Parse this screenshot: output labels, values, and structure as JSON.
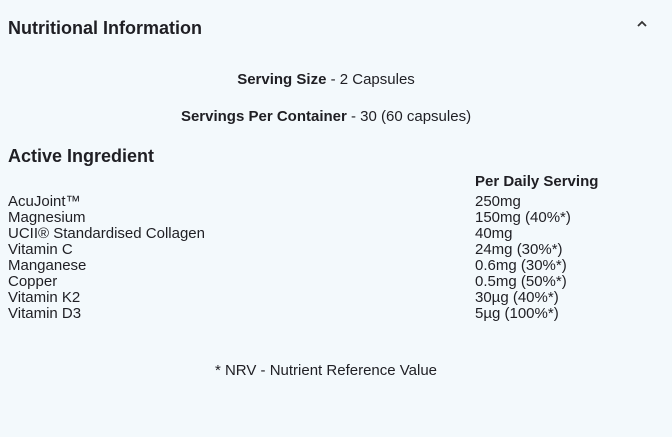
{
  "header": {
    "title": "Nutritional Information",
    "toggle_icon": "chevron-up-icon"
  },
  "serving_size": {
    "label": "Serving Size",
    "value": "- 2 Capsules"
  },
  "servings_per_container": {
    "label": "Servings Per Container",
    "value": "- 30 (60 capsules)"
  },
  "ingredients": {
    "heading": "Active Ingredient",
    "column_header": "Per Daily Serving",
    "rows": [
      {
        "name": "AcuJoint™",
        "amount": "250mg"
      },
      {
        "name": "Magnesium",
        "amount": "150mg (40%*)"
      },
      {
        "name": "UCII® Standardised Collagen",
        "amount": "40mg"
      },
      {
        "name": "Vitamin C",
        "amount": "24mg (30%*)"
      },
      {
        "name": "Manganese",
        "amount": "0.6mg (30%*)"
      },
      {
        "name": "Copper",
        "amount": "0.5mg (50%*)"
      },
      {
        "name": "Vitamin K2",
        "amount": "30µg (40%*)"
      },
      {
        "name": "Vitamin D3",
        "amount": "5µg (100%*)"
      }
    ]
  },
  "footnote": "* NRV - Nutrient Reference Value"
}
